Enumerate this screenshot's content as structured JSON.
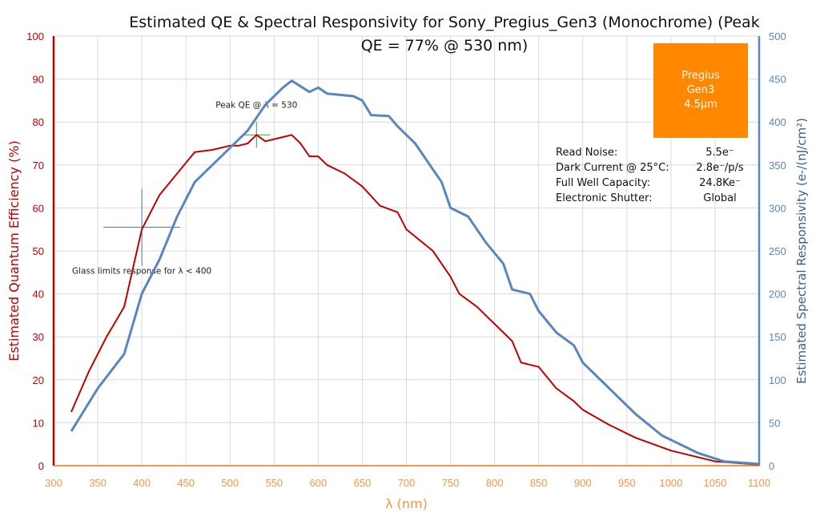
{
  "chart_data": {
    "type": "line",
    "title": "Estimated QE & Spectral Responsivity for Sony_Pregius_Gen3 (Monochrome) (Peak QE = 77% @ 530 nm)",
    "xlabel": "λ (nm)",
    "ylabel": "Estimated Quantum Efficiency (%)",
    "y2label": "Estimated Spectral Responsivity (e-/(nJ/cm²)",
    "xlim": [
      300,
      1100
    ],
    "ylim": [
      0,
      100
    ],
    "y2lim": [
      0,
      500
    ],
    "xticks": [
      300,
      350,
      400,
      450,
      500,
      550,
      600,
      650,
      700,
      750,
      800,
      850,
      900,
      950,
      1000,
      1050,
      1100
    ],
    "yticks": [
      0,
      10,
      20,
      30,
      40,
      50,
      60,
      70,
      80,
      90,
      100
    ],
    "y2ticks": [
      0,
      50,
      100,
      150,
      200,
      250,
      300,
      350,
      400,
      450,
      500
    ],
    "grid": true,
    "colors": {
      "qe": "#c00000",
      "responsivity": "#5a86c0",
      "xaxis": "#f79646",
      "badge": "#ff8800",
      "glass_marker": "#4a7ab0",
      "peak_marker": "#2e9e4a"
    },
    "series": [
      {
        "axis": "left",
        "x": [
          320,
          340,
          360,
          380,
          400,
          420,
          440,
          460,
          480,
          500,
          510,
          520,
          530,
          540,
          560,
          570,
          580,
          590,
          600,
          610,
          630,
          650,
          670,
          690,
          700,
          730,
          750,
          760,
          780,
          800,
          820,
          830,
          850,
          870,
          890,
          900,
          930,
          960,
          1000,
          1050,
          1100
        ],
        "values": [
          12.5,
          22,
          30,
          37,
          55,
          63,
          68,
          73,
          73.5,
          74.5,
          74.5,
          75,
          77,
          75.5,
          76.5,
          77,
          75,
          72,
          72,
          70,
          68,
          65,
          60.5,
          59,
          55,
          50,
          44,
          40,
          37,
          33,
          29,
          24,
          23,
          18,
          15,
          13,
          9.5,
          6.5,
          3.5,
          1,
          0.2
        ]
      },
      {
        "axis": "right",
        "x": [
          320,
          350,
          380,
          400,
          420,
          440,
          460,
          480,
          500,
          520,
          540,
          560,
          570,
          590,
          600,
          610,
          640,
          650,
          660,
          680,
          690,
          710,
          730,
          740,
          750,
          770,
          790,
          810,
          820,
          840,
          850,
          870,
          890,
          900,
          930,
          960,
          990,
          1000,
          1030,
          1060,
          1100
        ],
        "values": [
          40,
          90,
          130,
          200,
          240,
          290,
          330,
          350,
          370,
          390,
          420,
          440,
          448,
          435,
          440,
          433,
          430,
          425,
          408,
          407,
          395,
          375,
          345,
          330,
          300,
          290,
          260,
          235,
          205,
          200,
          180,
          155,
          140,
          120,
          90,
          60,
          35,
          30,
          15,
          5,
          2
        ]
      }
    ],
    "annotations": [
      {
        "text": "Peak QE @ λ = 530",
        "x": 530,
        "y": 77
      },
      {
        "text": "Glass limits response for λ <  400",
        "x": 400,
        "y": 55.5
      }
    ]
  },
  "badge": {
    "line1": "Pregius",
    "line2": "Gen3",
    "line3": "4.5µm"
  },
  "specs": [
    {
      "label": "Read Noise:",
      "value": "5.5e⁻"
    },
    {
      "label": "Dark Current @ 25°C:",
      "value": "2.8e⁻/p/s"
    },
    {
      "label": "Full Well Capacity:",
      "value": "24.8Ke⁻"
    },
    {
      "label": "Electronic Shutter:",
      "value": "Global"
    }
  ]
}
